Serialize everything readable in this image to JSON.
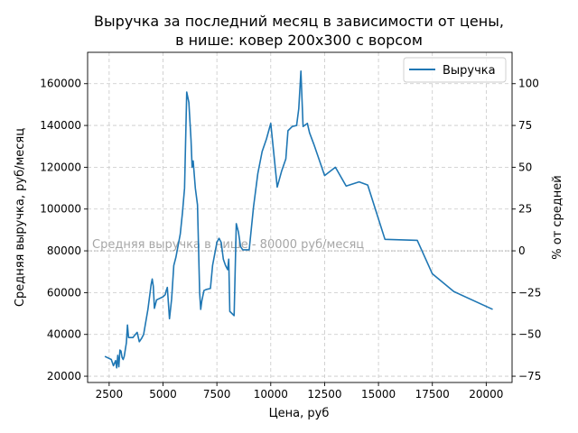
{
  "chart_data": {
    "type": "line",
    "title_line1": "Выручка за последний месяц в зависимости от цены,",
    "title_line2": "в нише: ковер 200х300 с ворсом",
    "xlabel": "Цена, руб",
    "ylabel": "Средняя выручка, руб/месяц",
    "ylabel_right": "% от средней",
    "xlim": [
      1500,
      21200
    ],
    "ylim": [
      17000,
      175000
    ],
    "ylim_right": [
      -78.75,
      118.75
    ],
    "x_ticks": [
      2500,
      5000,
      7500,
      10000,
      12500,
      15000,
      17500,
      20000
    ],
    "x_tick_labels": [
      "2500",
      "5000",
      "7500",
      "10000",
      "12500",
      "15000",
      "17500",
      "20000"
    ],
    "y_ticks": [
      20000,
      40000,
      60000,
      80000,
      100000,
      120000,
      140000,
      160000
    ],
    "y_tick_labels": [
      "20000",
      "40000",
      "60000",
      "80000",
      "100000",
      "120000",
      "140000",
      "160000"
    ],
    "y_right_ticks": [
      -75,
      -50,
      -25,
      0,
      25,
      50,
      75,
      100
    ],
    "y_right_tick_labels": [
      "−75",
      "−50",
      "−25",
      "0",
      "25",
      "50",
      "75",
      "100"
    ],
    "grid": true,
    "legend_position": "top-right",
    "reference_line": {
      "y": 80000,
      "label": "Средняя выручка в нише - 80000 руб/месяц",
      "color": "#a6a6a6"
    },
    "series": [
      {
        "name": "Выручка",
        "color": "#1f77b4",
        "x": [
          2300,
          2600,
          2700,
          2800,
          2850,
          2900,
          2950,
          3000,
          3050,
          3100,
          3150,
          3200,
          3300,
          3350,
          3400,
          3600,
          3800,
          3900,
          4000,
          4100,
          4300,
          4450,
          4500,
          4550,
          4600,
          4700,
          4800,
          5000,
          5100,
          5150,
          5200,
          5300,
          5400,
          5500,
          5600,
          5800,
          5900,
          6000,
          6100,
          6200,
          6300,
          6350,
          6400,
          6500,
          6600,
          6700,
          6750,
          6800,
          6900,
          7000,
          7200,
          7300,
          7500,
          7600,
          7700,
          7800,
          7900,
          8000,
          8050,
          8100,
          8300,
          8400,
          8500,
          8600,
          8700,
          9000,
          9200,
          9400,
          9600,
          9800,
          10000,
          10300,
          10500,
          10700,
          10800,
          11000,
          11200,
          11300,
          11400,
          11500,
          11700,
          11800,
          12000,
          12500,
          13000,
          13500,
          14100,
          14500,
          15300,
          16800,
          17500,
          18500,
          20300
        ],
        "values": [
          29500,
          28000,
          25000,
          27500,
          24000,
          30000,
          24500,
          32500,
          32000,
          29000,
          28000,
          29500,
          36000,
          44500,
          38500,
          38500,
          41000,
          36500,
          38000,
          40000,
          52000,
          64000,
          66500,
          63000,
          52500,
          56500,
          57000,
          58000,
          59000,
          61000,
          62500,
          47500,
          57000,
          73000,
          77000,
          88000,
          98000,
          110000,
          156000,
          151000,
          133000,
          120000,
          123000,
          110000,
          102000,
          60000,
          52000,
          56000,
          61000,
          61500,
          62000,
          73000,
          84000,
          86000,
          84000,
          76000,
          73000,
          71000,
          76000,
          51000,
          49000,
          93000,
          89000,
          82000,
          80500,
          80500,
          101000,
          117000,
          127500,
          133500,
          141000,
          110500,
          118000,
          124000,
          137500,
          139500,
          140000,
          148000,
          166000,
          139500,
          141000,
          136500,
          131000,
          116000,
          120000,
          111000,
          113000,
          111500,
          85500,
          85000,
          69000,
          60500,
          52000
        ]
      }
    ]
  }
}
